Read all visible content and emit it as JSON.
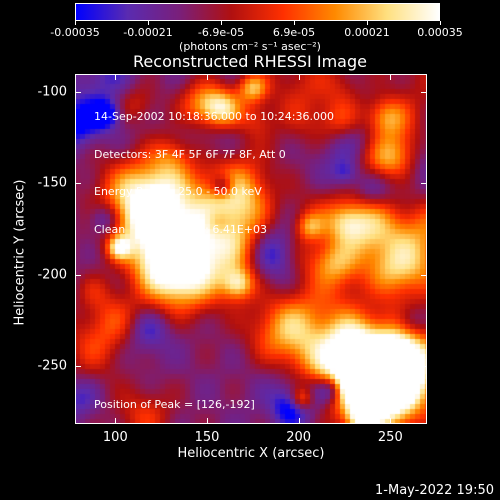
{
  "colorbar": {
    "tick_labels": [
      "-0.00035",
      "-0.00021",
      "-6.9e-05",
      "6.9e-05",
      "0.00021",
      "0.00035"
    ],
    "unit_label": "(photons cm⁻² s⁻¹ asec⁻²)",
    "colors": [
      "#0000ff",
      "#5a2bb0",
      "#7a1f7a",
      "#b01010",
      "#ff3000",
      "#ff8a00",
      "#ffe080",
      "#ffffff"
    ]
  },
  "title": "Reconstructed RHESSI Image",
  "info_lines": [
    "14-Sep-2002 10:18:36.000 to 10:24:36.000",
    "Detectors: 3F 4F 5F 6F 7F 8F, Att 0",
    "Energy Range: 25.0 - 50.0 keV",
    "Clean    Total counts: 6.41E+03"
  ],
  "peak_text": "Position of Peak = [126,-192]",
  "axes": {
    "x_label": "Heliocentric X (arcsec)",
    "y_label": "Heliocentric Y (arcsec)",
    "x_ticks": [
      "100",
      "150",
      "200",
      "250"
    ],
    "y_ticks": [
      "-100",
      "-150",
      "-200",
      "-250"
    ],
    "x_range": [
      78,
      270
    ],
    "y_range": [
      -282,
      -90
    ]
  },
  "timestamp": "1-May-2022 19:50"
}
